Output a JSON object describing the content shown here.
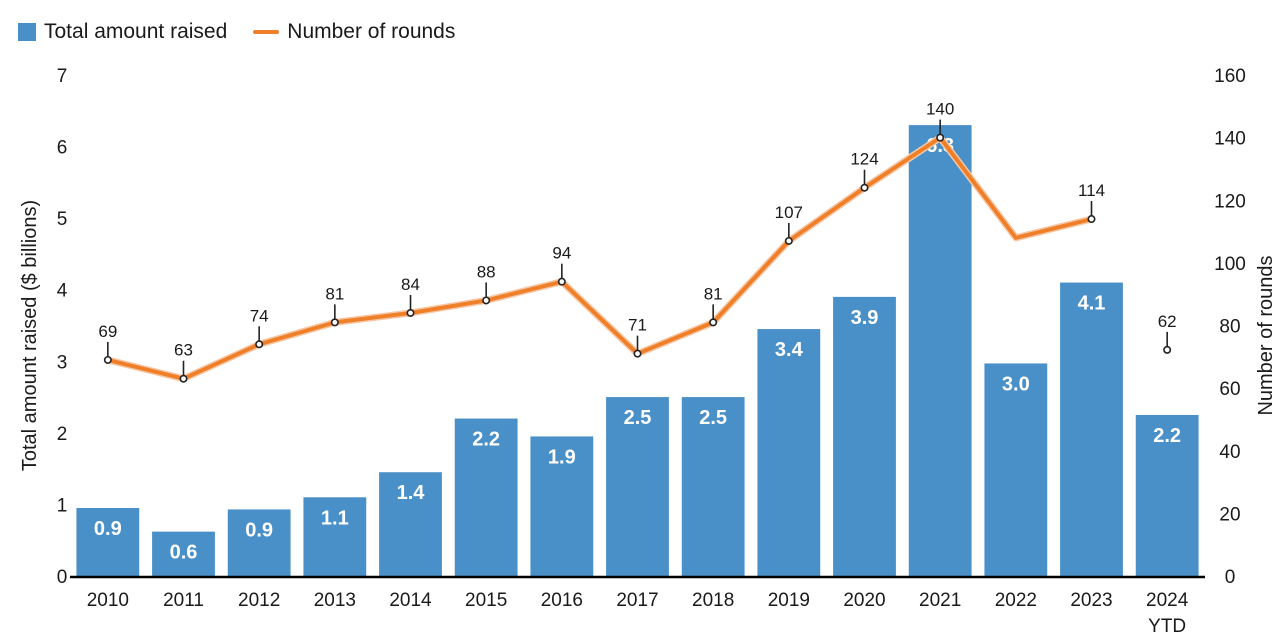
{
  "colors": {
    "bar": "#4a90c8",
    "line": "#f07f2a",
    "axis": "#000000"
  },
  "legend": {
    "bar_label": "Total amount raised",
    "line_label": "Number of rounds"
  },
  "chart_data": {
    "type": "bar+line",
    "categories": [
      "2010",
      "2011",
      "2012",
      "2013",
      "2014",
      "2015",
      "2016",
      "2017",
      "2018",
      "2019",
      "2020",
      "2021",
      "2022",
      "2023",
      "2024 YTD"
    ],
    "series": [
      {
        "name": "Total amount raised",
        "type": "bar",
        "axis": "left",
        "values": [
          0.95,
          0.62,
          0.93,
          1.1,
          1.45,
          2.2,
          1.95,
          2.5,
          2.5,
          3.45,
          3.9,
          6.3,
          2.97,
          4.1,
          2.25
        ],
        "labels": [
          "0.9",
          "0.6",
          "0.9",
          "1.1",
          "1.4",
          "2.2",
          "1.9",
          "2.5",
          "2.5",
          "3.4",
          "3.9",
          "6.3",
          "3.0",
          "4.1",
          "2.2"
        ]
      },
      {
        "name": "Number of rounds",
        "type": "line",
        "axis": "right",
        "values": [
          69,
          63,
          74,
          81,
          84,
          88,
          94,
          71,
          81,
          107,
          124,
          140,
          108,
          114,
          62
        ],
        "labels": [
          "69",
          "63",
          "74",
          "81",
          "84",
          "88",
          "94",
          "71",
          "81",
          "107",
          "124",
          "140",
          "",
          "114",
          "62"
        ]
      }
    ],
    "ylabel_left": "Total amount raised ($ billions)",
    "ylabel_right": "Number of rounds",
    "ylim_left": [
      0,
      7
    ],
    "ylim_right": [
      0,
      160
    ],
    "yticks_left": [
      "0",
      "1",
      "2",
      "3",
      "4",
      "5",
      "6",
      "7"
    ],
    "yticks_right": [
      "0",
      "20",
      "40",
      "60",
      "80",
      "100",
      "120",
      "140",
      "160"
    ],
    "legend_position": "top-left",
    "grid": false
  }
}
